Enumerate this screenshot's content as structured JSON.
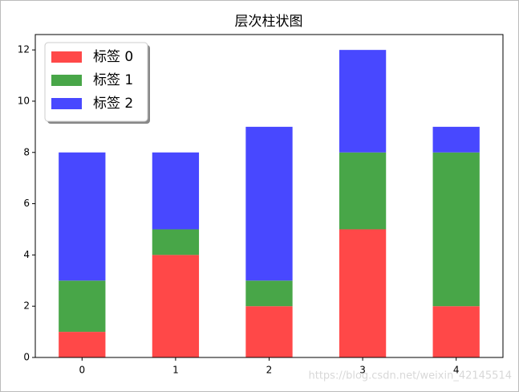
{
  "chart_data": {
    "type": "stacked-bar",
    "title": "层次柱状图",
    "x": [
      0,
      1,
      2,
      3,
      4
    ],
    "xlim": [
      -0.5,
      4.5
    ],
    "xticks": [
      0,
      1,
      2,
      3,
      4
    ],
    "bar_width": 0.5,
    "ylim": [
      0,
      12.6
    ],
    "yticks": [
      0,
      2,
      4,
      6,
      8,
      10,
      12
    ],
    "series": [
      {
        "name": "标签 0",
        "color": "#ff4848",
        "values": [
          1,
          4,
          2,
          5,
          2
        ]
      },
      {
        "name": "标签 1",
        "color": "#48a648",
        "values": [
          2,
          1,
          1,
          3,
          6
        ]
      },
      {
        "name": "标签 2",
        "color": "#4848ff",
        "values": [
          5,
          3,
          6,
          4,
          1
        ]
      }
    ],
    "legend": "upper left",
    "watermark": "https://blog.csdn.net/weixin_42145514"
  }
}
